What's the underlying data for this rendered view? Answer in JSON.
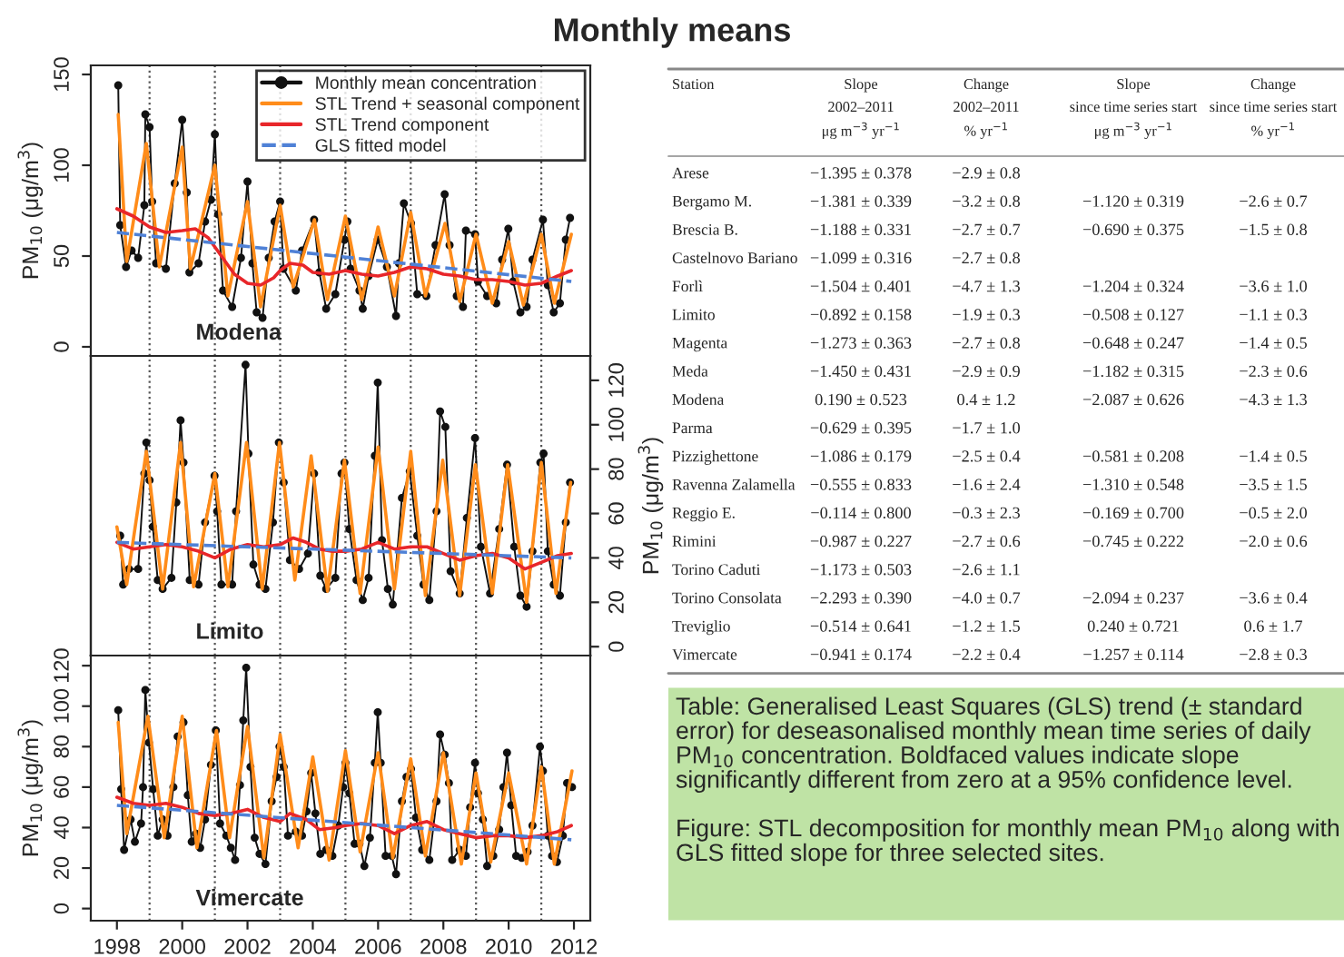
{
  "chart_data": [
    {
      "type": "line",
      "title": "Monthly means",
      "ylabel": "PM$_{10}$ (μg/m$^{3}$)",
      "xlim": [
        1997.2,
        2012.5
      ],
      "xticks": [
        1998,
        2000,
        2002,
        2004,
        2006,
        2008,
        2010,
        2012
      ],
      "ylim": [
        -5,
        155
      ],
      "yticks": [
        0,
        50,
        100,
        150
      ],
      "tick_labels": "y",
      "legend": "top right",
      "annotations": [
        "Modena"
      ],
      "ref_lines": [
        {
          "axis": "x",
          "value": 1999,
          "color": "#555555",
          "line_style": "dotted"
        },
        {
          "axis": "x",
          "value": 2001,
          "color": "#555555",
          "line_style": "dotted"
        },
        {
          "axis": "x",
          "value": 2003,
          "color": "#555555",
          "line_style": "dotted"
        },
        {
          "axis": "x",
          "value": 2005,
          "color": "#555555",
          "line_style": "dotted"
        },
        {
          "axis": "x",
          "value": 2007,
          "color": "#555555",
          "line_style": "dotted"
        },
        {
          "axis": "x",
          "value": 2009,
          "color": "#555555",
          "line_style": "dotted"
        },
        {
          "axis": "x",
          "value": 2011,
          "color": "#555555",
          "line_style": "dotted"
        }
      ],
      "series": [
        {
          "name": "Monthly mean concentration",
          "color": "#111111",
          "marker": "circle",
          "x": [
            1998.04,
            1998.1,
            1998.28,
            1998.45,
            1998.65,
            1998.84,
            1998.87,
            1999.0,
            1999.08,
            1999.2,
            1999.5,
            1999.77,
            2000.0,
            2000.14,
            2000.22,
            2000.5,
            2000.7,
            2000.88,
            2001.0,
            2001.1,
            2001.25,
            2001.53,
            2001.8,
            2002.0,
            2002.15,
            2002.28,
            2002.46,
            2002.65,
            2002.83,
            2003.0,
            2003.1,
            2003.48,
            2003.67,
            2004.04,
            2004.2,
            2004.41,
            2004.69,
            2004.97,
            2005.06,
            2005.16,
            2005.43,
            2005.53,
            2005.71,
            2005.99,
            2006.27,
            2006.55,
            2006.64,
            2006.79,
            2007.01,
            2007.2,
            2007.48,
            2007.76,
            2008.04,
            2008.19,
            2008.41,
            2008.6,
            2008.69,
            2008.97,
            2009.06,
            2009.34,
            2009.62,
            2009.8,
            2009.99,
            2010.14,
            2010.36,
            2010.55,
            2010.73,
            2011.05,
            2011.2,
            2011.38,
            2011.57,
            2011.75,
            2011.88
          ],
          "values": [
            144,
            67,
            44,
            53,
            49,
            78,
            128,
            121,
            80,
            46,
            43,
            90,
            125,
            85,
            41,
            46,
            69,
            81,
            117,
            73,
            31,
            22,
            49,
            91,
            46,
            19,
            16,
            49,
            69,
            80,
            43,
            31,
            53,
            70,
            41,
            21,
            29,
            59,
            69,
            43,
            31,
            21,
            39,
            59,
            44,
            17,
            46,
            79,
            68,
            29,
            28,
            56,
            84,
            56,
            28,
            22,
            64,
            62,
            36,
            28,
            24,
            48,
            65,
            36,
            19,
            22,
            48,
            70,
            34,
            19,
            24,
            59,
            71
          ]
        },
        {
          "name": "STL Trend + seasonal component",
          "color": "#ff8c1a",
          "marker": "none",
          "x": [
            1998.04,
            1998.3,
            1998.9,
            1999.3,
            2000.0,
            2000.25,
            2001.0,
            2001.4,
            2002.0,
            2002.4,
            2003.0,
            2003.4,
            2004.05,
            2004.45,
            2005.0,
            2005.5,
            2006.0,
            2006.5,
            2007.0,
            2007.45,
            2008.05,
            2008.5,
            2009.0,
            2009.5,
            2010.0,
            2010.45,
            2011.0,
            2011.4,
            2011.92
          ],
          "values": [
            128,
            47,
            112,
            44,
            110,
            43,
            100,
            28,
            80,
            22,
            78,
            33,
            70,
            26,
            72,
            26,
            66,
            28,
            74,
            28,
            68,
            25,
            62,
            24,
            58,
            23,
            62,
            24,
            62
          ]
        },
        {
          "name": "STL Trend component",
          "color": "#e8262a",
          "marker": "none",
          "x": [
            1998.0,
            1998.5,
            1999.0,
            1999.5,
            2000.0,
            2000.4,
            2000.8,
            2001.2,
            2001.6,
            2002.0,
            2002.4,
            2002.8,
            2003.0,
            2003.3,
            2003.7,
            2004.0,
            2004.5,
            2005.0,
            2005.5,
            2006.0,
            2006.5,
            2007.0,
            2007.5,
            2008.0,
            2008.5,
            2009.0,
            2009.5,
            2010.0,
            2010.5,
            2011.0,
            2011.5,
            2011.92
          ],
          "values": [
            76,
            72,
            66,
            63,
            64,
            65,
            60,
            50,
            40,
            35,
            34,
            38,
            42,
            46,
            45,
            41,
            40,
            42,
            40,
            39,
            41,
            44,
            43,
            40,
            39,
            37,
            37,
            36,
            34,
            35,
            39,
            42
          ]
        },
        {
          "name": "GLS fitted model",
          "color": "#4f81d6",
          "marker": "none",
          "line_style": "dashed",
          "x": [
            1998.0,
            2011.92
          ],
          "values": [
            63,
            36
          ]
        }
      ]
    },
    {
      "type": "line",
      "y2label": "PM$_{10}$ (μg/m$^{3}$)",
      "xlim": [
        1997.2,
        2012.5
      ],
      "xticks": [
        1998,
        2000,
        2002,
        2004,
        2006,
        2008,
        2010,
        2012
      ],
      "y2lim": [
        -4,
        131
      ],
      "y2ticks": [
        0,
        20,
        40,
        60,
        80,
        100,
        120
      ],
      "tick_labels": "y",
      "annotations": [
        "Limito"
      ],
      "ref_lines": [
        {
          "axis": "x",
          "value": 1999,
          "color": "#555555",
          "line_style": "dotted"
        },
        {
          "axis": "x",
          "value": 2001,
          "color": "#555555",
          "line_style": "dotted"
        },
        {
          "axis": "x",
          "value": 2003,
          "color": "#555555",
          "line_style": "dotted"
        },
        {
          "axis": "x",
          "value": 2005,
          "color": "#555555",
          "line_style": "dotted"
        },
        {
          "axis": "x",
          "value": 2007,
          "color": "#555555",
          "line_style": "dotted"
        },
        {
          "axis": "x",
          "value": 2009,
          "color": "#555555",
          "line_style": "dotted"
        },
        {
          "axis": "x",
          "value": 2011,
          "color": "#555555",
          "line_style": "dotted"
        }
      ],
      "series": [
        {
          "color": "#111111",
          "marker": "circle",
          "axis": "y2",
          "x": [
            1998.1,
            1998.19,
            1998.37,
            1998.65,
            1998.84,
            1998.9,
            1999.0,
            1999.1,
            1999.25,
            1999.4,
            1999.67,
            1999.82,
            1999.95,
            2000.04,
            2000.23,
            2000.5,
            2000.7,
            2000.99,
            2001.07,
            2001.2,
            2001.53,
            2001.65,
            2001.94,
            2002.03,
            2002.18,
            2002.37,
            2002.55,
            2002.78,
            2002.96,
            2003.11,
            2003.3,
            2003.58,
            2003.85,
            2004.04,
            2004.23,
            2004.41,
            2004.69,
            2004.88,
            2004.97,
            2005.12,
            2005.34,
            2005.53,
            2005.71,
            2005.9,
            2005.99,
            2006.12,
            2006.3,
            2006.45,
            2006.73,
            2006.97,
            2007.2,
            2007.39,
            2007.57,
            2007.79,
            2007.9,
            2008.06,
            2008.22,
            2008.5,
            2008.72,
            2008.97,
            2009.15,
            2009.43,
            2009.71,
            2009.95,
            2010.17,
            2010.36,
            2010.55,
            2010.73,
            2010.97,
            2011.07,
            2011.2,
            2011.38,
            2011.57,
            2011.75,
            2011.88
          ],
          "values": [
            50,
            28,
            35,
            35,
            78,
            92,
            75,
            54,
            30,
            26,
            31,
            65,
            102,
            83,
            30,
            28,
            56,
            77,
            61,
            28,
            28,
            61,
            127,
            87,
            37,
            28,
            26,
            56,
            92,
            74,
            39,
            35,
            42,
            78,
            32,
            26,
            31,
            78,
            83,
            53,
            30,
            21,
            31,
            86,
            119,
            48,
            26,
            19,
            67,
            79,
            50,
            28,
            21,
            61,
            106,
            99,
            34,
            24,
            58,
            94,
            45,
            24,
            53,
            82,
            45,
            23,
            18,
            43,
            83,
            87,
            43,
            28,
            23,
            56,
            74
          ]
        },
        {
          "color": "#ff8c1a",
          "marker": "none",
          "axis": "y2",
          "x": [
            1998.0,
            1998.3,
            1998.9,
            1999.4,
            1999.95,
            2000.35,
            2001.0,
            2001.4,
            2001.97,
            2002.45,
            2002.98,
            2003.45,
            2003.95,
            2004.45,
            2004.97,
            2005.45,
            2006.0,
            2006.5,
            2007.0,
            2007.45,
            2007.98,
            2008.5,
            2008.98,
            2009.5,
            2009.97,
            2010.55,
            2011.0,
            2011.45,
            2011.9
          ],
          "values": [
            54,
            28,
            88,
            26,
            92,
            27,
            78,
            27,
            92,
            26,
            92,
            30,
            86,
            25,
            84,
            24,
            90,
            26,
            88,
            23,
            84,
            23,
            82,
            24,
            82,
            20,
            83,
            24,
            74
          ]
        },
        {
          "color": "#e8262a",
          "marker": "none",
          "axis": "y2",
          "x": [
            1998.0,
            1998.5,
            1999.0,
            1999.5,
            2000.0,
            2000.5,
            2001.0,
            2001.5,
            2002.0,
            2002.5,
            2003.0,
            2003.4,
            2003.8,
            2004.2,
            2004.6,
            2005.0,
            2005.5,
            2006.0,
            2006.5,
            2007.0,
            2007.5,
            2008.0,
            2008.5,
            2009.0,
            2009.5,
            2010.0,
            2010.5,
            2011.0,
            2011.5,
            2011.92
          ],
          "values": [
            47,
            44,
            45,
            46,
            45,
            43,
            40,
            44,
            46,
            45,
            46,
            49,
            47,
            44,
            43,
            43,
            44,
            47,
            44,
            45,
            45,
            42,
            39,
            41,
            42,
            40,
            35,
            38,
            41,
            42
          ]
        },
        {
          "color": "#4f81d6",
          "marker": "none",
          "line_style": "dashed",
          "axis": "y2",
          "x": [
            1998.0,
            2011.92
          ],
          "values": [
            47,
            40
          ]
        }
      ]
    },
    {
      "type": "line",
      "ylabel": "PM$_{10}$ (μg/m$^{3}$)",
      "xlim": [
        1997.2,
        2012.5
      ],
      "xticks": [
        1998,
        2000,
        2002,
        2004,
        2006,
        2008,
        2010,
        2012
      ],
      "ylim": [
        -6,
        125
      ],
      "yticks": [
        0,
        20,
        40,
        60,
        80,
        100,
        120
      ],
      "annotations": [
        "Vimercate"
      ],
      "ref_lines": [
        {
          "axis": "x",
          "value": 1999,
          "color": "#555555",
          "line_style": "dotted"
        },
        {
          "axis": "x",
          "value": 2001,
          "color": "#555555",
          "line_style": "dotted"
        },
        {
          "axis": "x",
          "value": 2003,
          "color": "#555555",
          "line_style": "dotted"
        },
        {
          "axis": "x",
          "value": 2005,
          "color": "#555555",
          "line_style": "dotted"
        },
        {
          "axis": "x",
          "value": 2007,
          "color": "#555555",
          "line_style": "dotted"
        },
        {
          "axis": "x",
          "value": 2009,
          "color": "#555555",
          "line_style": "dotted"
        },
        {
          "axis": "x",
          "value": 2011,
          "color": "#555555",
          "line_style": "dotted"
        }
      ],
      "series": [
        {
          "color": "#111111",
          "marker": "circle",
          "x": [
            1998.04,
            1998.13,
            1998.22,
            1998.42,
            1998.55,
            1998.74,
            1998.8,
            1998.87,
            1998.98,
            1999.11,
            1999.25,
            1999.4,
            1999.55,
            1999.73,
            1999.86,
            2000.04,
            2000.17,
            2000.29,
            2000.42,
            2000.55,
            2000.7,
            2000.88,
            2001.03,
            2001.16,
            2001.35,
            2001.49,
            2001.62,
            2001.77,
            2001.87,
            2001.96,
            2002.09,
            2002.22,
            2002.37,
            2002.55,
            2002.74,
            2002.89,
            2002.98,
            2003.11,
            2003.24,
            2003.48,
            2003.67,
            2003.81,
            2003.95,
            2004.08,
            2004.23,
            2004.41,
            2004.6,
            2004.78,
            2004.93,
            2005.0,
            2005.12,
            2005.28,
            2005.43,
            2005.58,
            2005.75,
            2005.9,
            2005.99,
            2006.08,
            2006.23,
            2006.42,
            2006.55,
            2006.73,
            2006.87,
            2007.01,
            2007.16,
            2007.35,
            2007.57,
            2007.79,
            2007.9,
            2008.04,
            2008.17,
            2008.27,
            2008.5,
            2008.69,
            2008.82,
            2008.97,
            2009.06,
            2009.21,
            2009.34,
            2009.53,
            2009.71,
            2009.84,
            2009.95,
            2010.08,
            2010.23,
            2010.4,
            2010.58,
            2010.73,
            2010.96,
            2011.05,
            2011.2,
            2011.33,
            2011.48,
            2011.66,
            2011.79,
            2011.94
          ],
          "values": [
            98,
            59,
            29,
            44,
            33,
            42,
            60,
            108,
            82,
            59,
            36,
            44,
            36,
            60,
            85,
            92,
            56,
            33,
            37,
            30,
            44,
            71,
            88,
            42,
            36,
            30,
            24,
            61,
            93,
            119,
            70,
            35,
            27,
            22,
            53,
            65,
            80,
            70,
            36,
            38,
            36,
            48,
            67,
            47,
            27,
            29,
            26,
            41,
            60,
            72,
            57,
            32,
            32,
            21,
            35,
            72,
            97,
            72,
            26,
            26,
            17,
            53,
            65,
            69,
            45,
            29,
            24,
            53,
            86,
            76,
            62,
            24,
            29,
            26,
            50,
            72,
            57,
            44,
            21,
            26,
            39,
            60,
            77,
            51,
            26,
            25,
            28,
            41,
            80,
            68,
            36,
            26,
            23,
            36,
            62,
            60
          ]
        },
        {
          "color": "#ff8c1a",
          "marker": "none",
          "x": [
            1998.04,
            1998.3,
            1998.95,
            1999.45,
            2000.0,
            2000.45,
            2001.05,
            2001.45,
            2002.0,
            2002.5,
            2003.0,
            2003.55,
            2004.0,
            2004.5,
            2005.0,
            2005.45,
            2006.0,
            2006.45,
            2007.0,
            2007.45,
            2008.0,
            2008.55,
            2009.0,
            2009.45,
            2010.0,
            2010.55,
            2011.0,
            2011.4,
            2011.94
          ],
          "values": [
            92,
            37,
            95,
            35,
            95,
            30,
            88,
            35,
            90,
            25,
            86,
            30,
            75,
            24,
            78,
            28,
            77,
            25,
            74,
            26,
            77,
            22,
            67,
            23,
            67,
            22,
            70,
            22,
            68
          ]
        },
        {
          "color": "#e8262a",
          "marker": "none",
          "x": [
            1998.0,
            1998.5,
            1999.0,
            1999.5,
            2000.0,
            2000.5,
            2001.0,
            2001.5,
            2002.0,
            2002.5,
            2003.0,
            2003.3,
            2003.8,
            2004.2,
            2004.7,
            2005.0,
            2005.5,
            2006.0,
            2006.5,
            2007.0,
            2007.5,
            2008.0,
            2008.5,
            2009.0,
            2009.5,
            2010.0,
            2010.5,
            2011.0,
            2011.5,
            2011.92
          ],
          "values": [
            55,
            52,
            51,
            52,
            50,
            47,
            46,
            47,
            49,
            45,
            43,
            47,
            44,
            39,
            40,
            41,
            42,
            41,
            37,
            41,
            43,
            39,
            37,
            35,
            36,
            36,
            35,
            36,
            38,
            41
          ]
        },
        {
          "color": "#4f81d6",
          "marker": "none",
          "line_style": "dashed",
          "x": [
            1998.0,
            2011.92
          ],
          "values": [
            51,
            34
          ]
        }
      ]
    },
    {
      "type": "other",
      "color": "#bfe3a5",
      "categories": [
        "Station",
        "Slope\n2002–2011\nμg m$^{−3}$ yr$^{−1}$",
        "Change\n2002–2011\n% yr$^{−1}$",
        "Slope\nsince time series start\nμg m$^{−3}$ yr$^{−1}$",
        "Change\nsince time series start\n% yr$^{−1}$"
      ],
      "y_categories": [
        "Arese",
        "Bergamo M.",
        "Brescia B.",
        "Castelnovo Bariano",
        "Forlì",
        "Limito",
        "Magenta",
        "Meda",
        "Modena",
        "Parma",
        "Pizzighettone",
        "Ravenna Zalamella",
        "Reggio E.",
        "Rimini",
        "Torino Caduti",
        "Torino Consolata",
        "Treviglio",
        "Vimercate"
      ],
      "cell_labels": [
        [
          "−1.395 ± 0.378",
          "−2.9 ± 0.8",
          null,
          null
        ],
        [
          "−1.381 ± 0.339",
          "−3.2 ± 0.8",
          "−1.120 ± 0.319",
          "−2.6 ± 0.7"
        ],
        [
          "−1.188 ± 0.331",
          "−2.7 ± 0.7",
          "−0.690 ± 0.375",
          "−1.5 ± 0.8"
        ],
        [
          "−1.099 ± 0.316",
          "−2.7 ± 0.8",
          null,
          null
        ],
        [
          "−1.504 ± 0.401",
          "−4.7 ± 1.3",
          "−1.204 ± 0.324",
          "−3.6 ± 1.0"
        ],
        [
          "−0.892 ± 0.158",
          "−1.9 ± 0.3",
          "−0.508 ± 0.127",
          "−1.1 ± 0.3"
        ],
        [
          "−1.273 ± 0.363",
          "−2.7 ± 0.8",
          "−0.648 ± 0.247",
          "−1.4 ± 0.5"
        ],
        [
          "−1.450 ± 0.431",
          "−2.9 ± 0.9",
          "−1.182 ± 0.315",
          "−2.3 ± 0.6"
        ],
        [
          "0.190 ± 0.523",
          "0.4 ± 1.2",
          "−2.087 ± 0.626",
          "−4.3 ± 1.3"
        ],
        [
          "−0.629 ± 0.395",
          "−1.7 ± 1.0",
          null,
          null
        ],
        [
          "−1.086 ± 0.179",
          "−2.5 ± 0.4",
          "−0.581 ± 0.208",
          "−1.4 ± 0.5"
        ],
        [
          "−0.555 ± 0.833",
          "−1.6 ± 2.4",
          "−1.310 ± 0.548",
          "−3.5 ± 1.5"
        ],
        [
          "−0.114 ± 0.800",
          "−0.3 ± 2.3",
          "−0.169 ± 0.700",
          "−0.5 ± 2.0"
        ],
        [
          "−0.987 ± 0.227",
          "−2.7 ± 0.6",
          "−0.745 ± 0.222",
          "−2.0 ± 0.6"
        ],
        [
          "−1.173 ± 0.503",
          "−2.6 ± 1.1",
          null,
          null
        ],
        [
          "−2.293 ± 0.390",
          "−4.0 ± 0.7",
          "−2.094 ± 0.237",
          "−3.6 ± 0.4"
        ],
        [
          "−0.514 ± 0.641",
          "−1.2 ± 1.5",
          "0.240 ± 0.721",
          "0.6 ± 1.7"
        ],
        [
          "−0.941 ± 0.174",
          "−2.2 ± 0.4",
          "−1.257 ± 0.114",
          "−2.8 ± 0.3"
        ]
      ],
      "annotations": [
        "Table: Generalised Least Squares (GLS) trend (± standard error) for deseasonalised monthly mean time series of daily PM$_{10}$ concentration. Boldfaced values indicate slope significantly different from zero at a 95% confidence level.",
        "Figure: STL decomposition for monthly mean PM$_{10}$ along with GLS fitted slope for three selected sites."
      ]
    }
  ]
}
